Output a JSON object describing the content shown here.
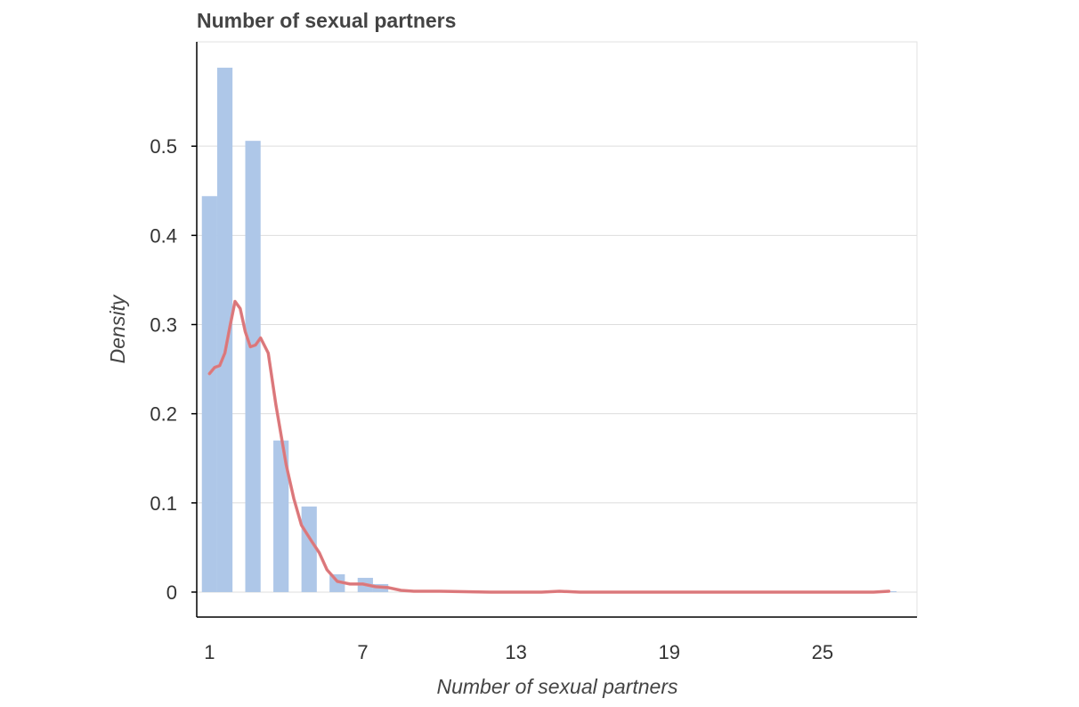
{
  "chart_data": {
    "type": "bar",
    "title": "Number of sexual partners",
    "xlabel": "Number of sexual partners",
    "ylabel": "Density",
    "xlim": [
      0.5,
      28.7
    ],
    "ylim": [
      -0.028,
      0.617
    ],
    "x_ticks": [
      1,
      7,
      13,
      19,
      25
    ],
    "x_tick_labels": [
      "1",
      "7",
      "13",
      "19",
      "25"
    ],
    "y_ticks": [
      0,
      0.1,
      0.2,
      0.3,
      0.4,
      0.5
    ],
    "y_tick_labels": [
      "0",
      "0.1",
      "0.2",
      "0.3",
      "0.4",
      "0.5"
    ],
    "grid": true,
    "legend": "none",
    "bar_width": 0.6,
    "series": [
      {
        "type": "bar",
        "color": "#aec7e8",
        "x": [
          1,
          1.6,
          2.7,
          3.8,
          4.9,
          6,
          7.1,
          7.7,
          10,
          14.7,
          27.6
        ],
        "values": [
          0.444,
          0.588,
          0.506,
          0.17,
          0.096,
          0.02,
          0.016,
          0.009,
          0.001,
          0.001,
          0.001
        ]
      },
      {
        "type": "line",
        "color": "#e27c7c",
        "x": [
          1,
          1.2,
          1.4,
          1.6,
          1.8,
          2,
          2.2,
          2.4,
          2.6,
          2.8,
          3,
          3.3,
          3.6,
          4,
          4.3,
          4.6,
          5,
          5.3,
          5.6,
          6,
          6.5,
          7,
          7.5,
          8,
          8.5,
          9,
          10,
          12,
          14,
          14.7,
          15.5,
          18,
          22,
          25,
          27,
          27.6
        ],
        "values": [
          0.245,
          0.252,
          0.254,
          0.268,
          0.298,
          0.326,
          0.318,
          0.292,
          0.275,
          0.277,
          0.285,
          0.268,
          0.21,
          0.143,
          0.105,
          0.075,
          0.057,
          0.044,
          0.025,
          0.012,
          0.009,
          0.009,
          0.006,
          0.005,
          0.002,
          0.001,
          0.001,
          0,
          0,
          0.001,
          0,
          0,
          0,
          0,
          0,
          0.001
        ]
      }
    ]
  }
}
